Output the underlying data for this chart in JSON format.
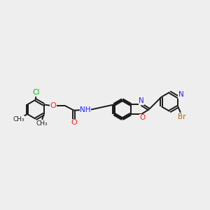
{
  "bg_color": "#eeeeee",
  "bond_color": "#1a1a1a",
  "colors": {
    "N": "#2020ff",
    "O": "#ff2020",
    "Cl": "#00bb00",
    "Br": "#bb6600",
    "C": "#1a1a1a"
  },
  "lw": 1.4,
  "dbo": 0.048,
  "r": 0.44,
  "xlim": [
    0,
    9.5
  ],
  "ylim": [
    2.0,
    6.5
  ],
  "figsize": [
    3.0,
    3.0
  ],
  "dpi": 100
}
